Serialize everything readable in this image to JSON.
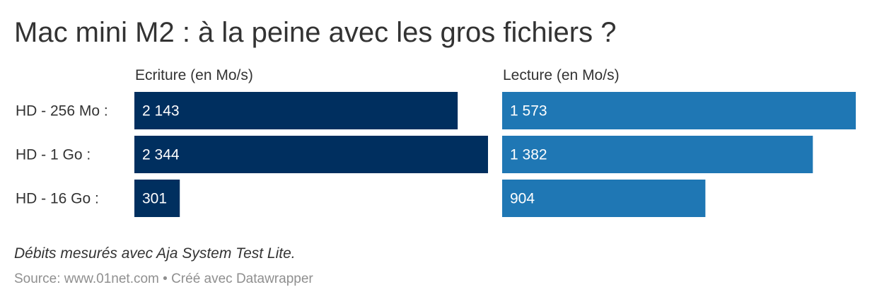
{
  "title": "Mac mini M2 : à la peine avec les gros fichiers ?",
  "note": "Débits mesurés avec Aja System Test Lite.",
  "source": "Source: www.01net.com • Créé avec Datawrapper",
  "colors": {
    "ecriture": "#002f5f",
    "lecture": "#1f77b4"
  },
  "chart_data": {
    "type": "bar",
    "orientation": "horizontal",
    "categories": [
      "HD - 256 Mo :",
      "HD - 1 Go :",
      "HD - 16 Go :"
    ],
    "series": [
      {
        "name": "Ecriture (en Mo/s)",
        "values": [
          2143,
          2344,
          301
        ],
        "labels": [
          "2 143",
          "2 344",
          "301"
        ]
      },
      {
        "name": "Lecture (en Mo/s)",
        "values": [
          1573,
          1382,
          904
        ],
        "labels": [
          "1 573",
          "1 382",
          "904"
        ]
      }
    ]
  }
}
